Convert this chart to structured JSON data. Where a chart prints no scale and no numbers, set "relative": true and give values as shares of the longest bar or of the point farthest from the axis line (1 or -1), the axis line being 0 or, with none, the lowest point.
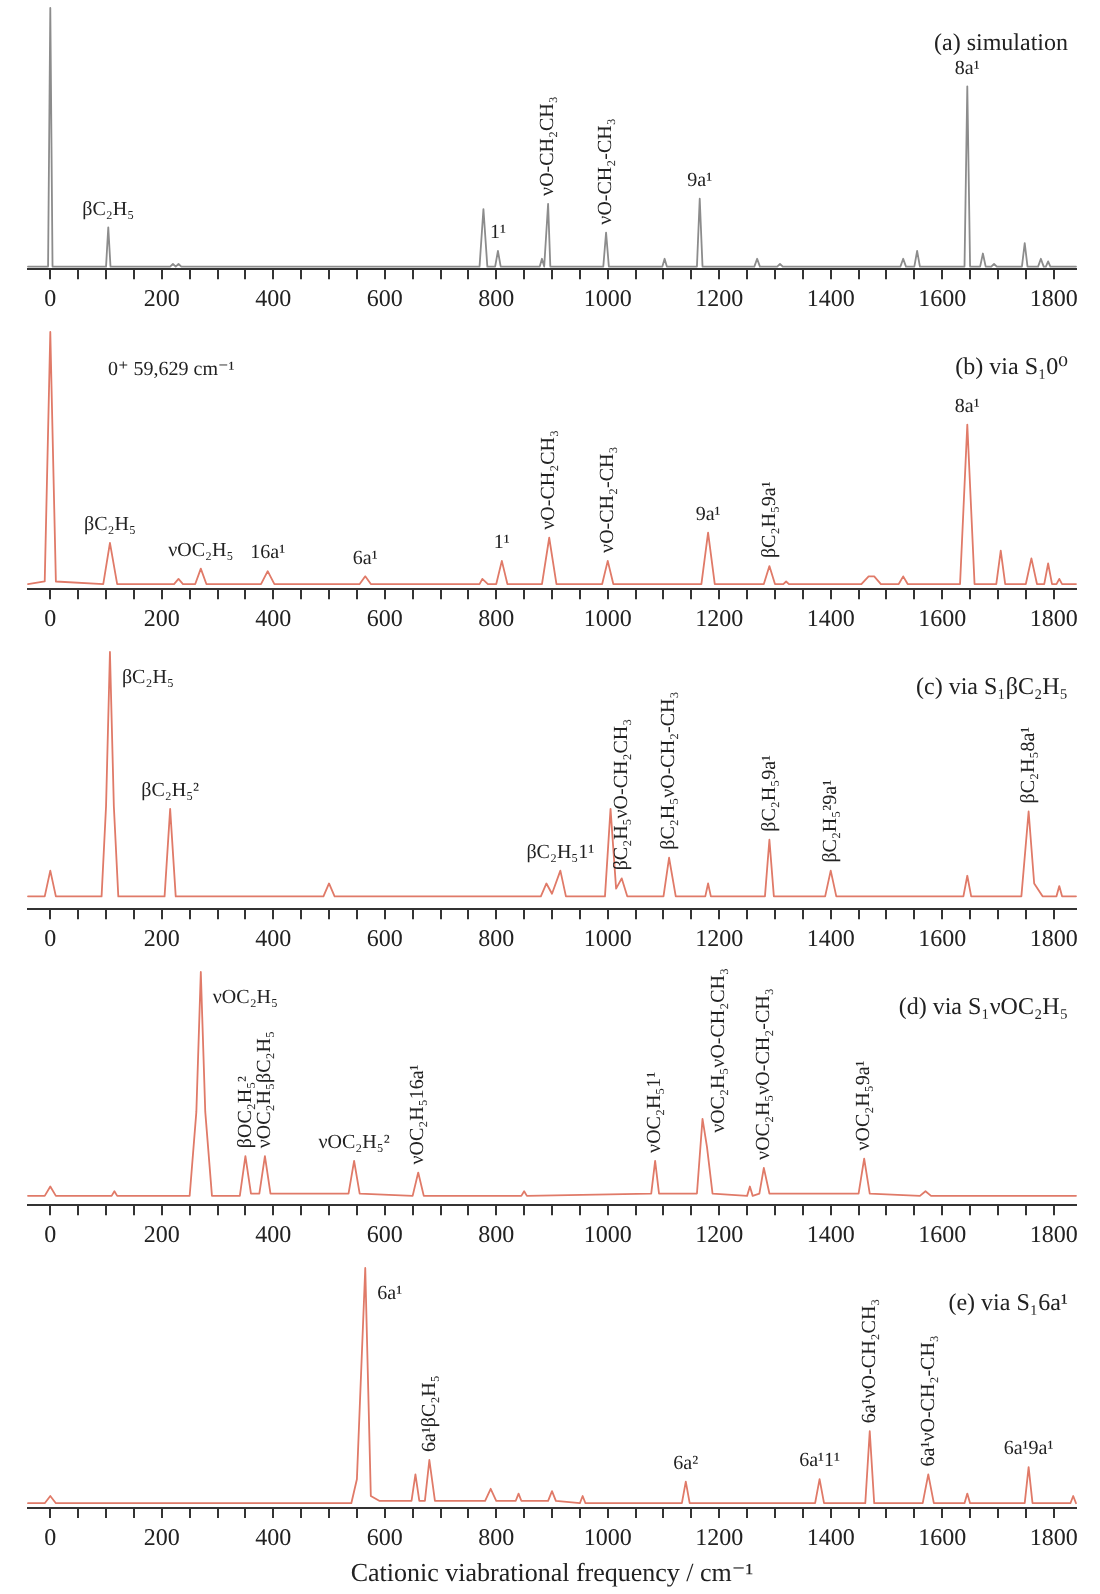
{
  "chart_data": [
    {
      "type": "line",
      "title": "(a) simulation",
      "relative": true,
      "xlim": [
        -40,
        1840
      ],
      "xticks": [
        0,
        {
          "value": 50,
          "label": null
        },
        {
          "value": 100,
          "label": null
        },
        {
          "value": 150,
          "label": null
        },
        200,
        {
          "value": 250,
          "label": null
        },
        {
          "value": 300,
          "label": null
        },
        {
          "value": 350,
          "label": null
        },
        400,
        {
          "value": 450,
          "label": null
        },
        {
          "value": 500,
          "label": null
        },
        {
          "value": 550,
          "label": null
        },
        600,
        {
          "value": 650,
          "label": null
        },
        {
          "value": 700,
          "label": null
        },
        {
          "value": 750,
          "label": null
        },
        800,
        {
          "value": 850,
          "label": null
        },
        {
          "value": 900,
          "label": null
        },
        {
          "value": 950,
          "label": null
        },
        1000,
        {
          "value": 1050,
          "label": null
        },
        {
          "value": 1100,
          "label": null
        },
        {
          "value": 1150,
          "label": null
        },
        1200,
        {
          "value": 1250,
          "label": null
        },
        {
          "value": 1300,
          "label": null
        },
        {
          "value": 1350,
          "label": null
        },
        1400,
        {
          "value": 1450,
          "label": null
        },
        {
          "value": 1500,
          "label": null
        },
        {
          "value": 1550,
          "label": null
        },
        1600,
        {
          "value": 1650,
          "label": null
        },
        {
          "value": 1700,
          "label": null
        },
        {
          "value": 1750,
          "label": null
        },
        1800
      ],
      "series": [
        {
          "color": "#8c8c8c",
          "x": [
            -40,
            -4,
            0,
            4,
            100,
            104,
            108,
            215,
            220,
            225,
            230,
            235,
            770,
            777,
            784,
            798,
            803,
            808,
            878,
            882,
            886,
            889,
            893,
            897,
            992,
            997,
            1002,
            1098,
            1102,
            1106,
            1160,
            1165,
            1170,
            1263,
            1268,
            1273,
            1304,
            1309,
            1314,
            1525,
            1530,
            1535,
            1550,
            1555,
            1560,
            1640,
            1645,
            1650,
            1668,
            1673,
            1678,
            1688,
            1693,
            1698,
            1743,
            1748,
            1753,
            1772,
            1777,
            1782,
            1786,
            1790,
            1794,
            1840
          ],
          "values": [
            0.01,
            0.01,
            1,
            0.01,
            0.01,
            0.16,
            0.01,
            0.01,
            0.02,
            0.01,
            0.02,
            0.01,
            0.01,
            0.23,
            0.01,
            0.01,
            0.07,
            0.01,
            0.01,
            0.04,
            0.01,
            0.01,
            0.25,
            0.01,
            0.01,
            0.14,
            0.01,
            0.01,
            0.04,
            0.01,
            0.01,
            0.27,
            0.01,
            0.01,
            0.04,
            0.01,
            0.01,
            0.02,
            0.01,
            0.01,
            0.04,
            0.01,
            0.01,
            0.07,
            0.01,
            0.01,
            0.7,
            0.01,
            0.01,
            0.06,
            0.01,
            0.01,
            0.02,
            0.01,
            0.01,
            0.1,
            0.01,
            0.01,
            0.04,
            0.01,
            0.01,
            0.03,
            0.01,
            0.01
          ]
        }
      ],
      "annotations": [
        {
          "text": "βC₂H₅",
          "x": 104,
          "y": 0.16
        },
        {
          "text": "1¹",
          "x": 803,
          "y": 0.07
        },
        {
          "text": "νO-CH₂CH₃",
          "x": 893,
          "y": 0.25
        },
        {
          "text": "νO-CH₂-CH₃",
          "x": 997,
          "y": 0.14
        },
        {
          "text": "9a¹",
          "x": 1165,
          "y": 0.27
        },
        {
          "text": "8a¹",
          "x": 1645,
          "y": 0.7
        }
      ]
    },
    {
      "type": "line",
      "title": "(b) via S₁0⁰",
      "relative": true,
      "xlim": [
        -40,
        1840
      ],
      "xticks": [
        0,
        {
          "value": 50,
          "label": null
        },
        {
          "value": 100,
          "label": null
        },
        {
          "value": 150,
          "label": null
        },
        200,
        {
          "value": 250,
          "label": null
        },
        {
          "value": 300,
          "label": null
        },
        {
          "value": 350,
          "label": null
        },
        400,
        {
          "value": 450,
          "label": null
        },
        {
          "value": 500,
          "label": null
        },
        {
          "value": 550,
          "label": null
        },
        600,
        {
          "value": 650,
          "label": null
        },
        {
          "value": 700,
          "label": null
        },
        {
          "value": 750,
          "label": null
        },
        800,
        {
          "value": 850,
          "label": null
        },
        {
          "value": 900,
          "label": null
        },
        {
          "value": 950,
          "label": null
        },
        1000,
        {
          "value": 1050,
          "label": null
        },
        {
          "value": 1100,
          "label": null
        },
        {
          "value": 1150,
          "label": null
        },
        1200,
        {
          "value": 1250,
          "label": null
        },
        {
          "value": 1300,
          "label": null
        },
        {
          "value": 1350,
          "label": null
        },
        1400,
        {
          "value": 1450,
          "label": null
        },
        {
          "value": 1500,
          "label": null
        },
        {
          "value": 1550,
          "label": null
        },
        1600,
        {
          "value": 1650,
          "label": null
        },
        {
          "value": 1700,
          "label": null
        },
        {
          "value": 1750,
          "label": null
        },
        1800
      ],
      "series": [
        {
          "color": "#e07a68",
          "x": [
            -40,
            -10,
            0,
            10,
            95,
            107,
            120,
            222,
            230,
            238,
            260,
            270,
            280,
            378,
            390,
            402,
            555,
            565,
            575,
            770,
            775,
            785,
            800,
            810,
            820,
            882,
            895,
            908,
            990,
            1000,
            1010,
            1168,
            1180,
            1192,
            1280,
            1290,
            1300,
            1315,
            1320,
            1325,
            1455,
            1468,
            1478,
            1490,
            1522,
            1530,
            1538,
            1632,
            1645,
            1658,
            1697,
            1705,
            1713,
            1750,
            1760,
            1770,
            1783,
            1790,
            1797,
            1805,
            1810,
            1815,
            1840
          ],
          "values": [
            0.02,
            0.03,
            1,
            0.03,
            0.02,
            0.18,
            0.02,
            0.02,
            0.04,
            0.02,
            0.02,
            0.08,
            0.02,
            0.02,
            0.07,
            0.02,
            0.02,
            0.05,
            0.02,
            0.02,
            0.04,
            0.02,
            0.02,
            0.11,
            0.02,
            0.02,
            0.2,
            0.02,
            0.02,
            0.11,
            0.02,
            0.02,
            0.22,
            0.02,
            0.02,
            0.09,
            0.02,
            0.02,
            0.03,
            0.02,
            0.02,
            0.05,
            0.05,
            0.02,
            0.02,
            0.05,
            0.02,
            0.02,
            0.64,
            0.02,
            0.02,
            0.15,
            0.02,
            0.02,
            0.12,
            0.02,
            0.02,
            0.1,
            0.02,
            0.02,
            0.04,
            0.02,
            0.02
          ]
        }
      ],
      "annotations": [
        "0⁺ 59,629 cm⁻¹",
        {
          "text": "βC₂H₅",
          "x": 107,
          "y": 0.18
        },
        {
          "text": "νOC₂H₅",
          "x": 270,
          "y": 0.08
        },
        {
          "text": "16a¹",
          "x": 390,
          "y": 0.07
        },
        {
          "text": "6a¹",
          "x": 565,
          "y": 0.05
        },
        {
          "text": "1¹",
          "x": 810,
          "y": 0.11
        },
        {
          "text": "νO-CH₂CH₃",
          "x": 895,
          "y": 0.2
        },
        {
          "text": "νO-CH₂-CH₃",
          "x": 1000,
          "y": 0.11
        },
        {
          "text": "9a¹",
          "x": 1180,
          "y": 0.22
        },
        {
          "text": "βC₂H₅9a¹",
          "x": 1290,
          "y": 0.09
        },
        {
          "text": "8a¹",
          "x": 1645,
          "y": 0.64
        }
      ]
    },
    {
      "type": "line",
      "title": "(c) via S₁βC₂H₅",
      "relative": true,
      "xlim": [
        -40,
        1840
      ],
      "xticks": [
        0,
        {
          "value": 50,
          "label": null
        },
        {
          "value": 100,
          "label": null
        },
        {
          "value": 150,
          "label": null
        },
        200,
        {
          "value": 250,
          "label": null
        },
        {
          "value": 300,
          "label": null
        },
        {
          "value": 350,
          "label": null
        },
        400,
        {
          "value": 450,
          "label": null
        },
        {
          "value": 500,
          "label": null
        },
        {
          "value": 550,
          "label": null
        },
        600,
        {
          "value": 650,
          "label": null
        },
        {
          "value": 700,
          "label": null
        },
        {
          "value": 750,
          "label": null
        },
        800,
        {
          "value": 850,
          "label": null
        },
        {
          "value": 900,
          "label": null
        },
        {
          "value": 950,
          "label": null
        },
        1000,
        {
          "value": 1050,
          "label": null
        },
        {
          "value": 1100,
          "label": null
        },
        {
          "value": 1150,
          "label": null
        },
        1200,
        {
          "value": 1250,
          "label": null
        },
        {
          "value": 1300,
          "label": null
        },
        {
          "value": 1350,
          "label": null
        },
        1400,
        {
          "value": 1450,
          "label": null
        },
        {
          "value": 1500,
          "label": null
        },
        {
          "value": 1550,
          "label": null
        },
        1600,
        {
          "value": 1650,
          "label": null
        },
        {
          "value": 1700,
          "label": null
        },
        {
          "value": 1750,
          "label": null
        },
        1800
      ],
      "series": [
        {
          "color": "#e07a68",
          "x": [
            -40,
            -10,
            0,
            10,
            92,
            100,
            107,
            114,
            122,
            205,
            215,
            225,
            490,
            500,
            510,
            880,
            890,
            900,
            915,
            925,
            995,
            1005,
            1015,
            1025,
            1035,
            1100,
            1110,
            1122,
            1175,
            1180,
            1185,
            1282,
            1290,
            1298,
            1390,
            1400,
            1410,
            1638,
            1645,
            1652,
            1742,
            1755,
            1765,
            1780,
            1805,
            1810,
            1815,
            1840
          ],
          "values": [
            0.05,
            0.05,
            0.15,
            0.05,
            0.05,
            0.4,
            1,
            0.4,
            0.05,
            0.05,
            0.39,
            0.05,
            0.05,
            0.1,
            0.05,
            0.05,
            0.1,
            0.06,
            0.15,
            0.05,
            0.05,
            0.39,
            0.08,
            0.12,
            0.05,
            0.05,
            0.2,
            0.05,
            0.05,
            0.1,
            0.05,
            0.05,
            0.27,
            0.05,
            0.05,
            0.15,
            0.05,
            0.05,
            0.13,
            0.05,
            0.05,
            0.38,
            0.1,
            0.05,
            0.05,
            0.09,
            0.05,
            0.05
          ]
        }
      ],
      "annotations": [
        {
          "text": "βC₂H₅",
          "x": 107,
          "y": 1
        },
        {
          "text": "βC₂H₅²",
          "x": 215,
          "y": 0.39
        },
        {
          "text": "βC₂H₅1¹",
          "x": 915,
          "y": 0.15
        },
        {
          "text": "βC₂H₅νO-CH₂CH₃",
          "x": 1025,
          "y": 0.12
        },
        {
          "text": "βC₂H₅νO-CH₂-CH₃",
          "x": 1110,
          "y": 0.2
        },
        {
          "text": "βC₂H₅9a¹",
          "x": 1290,
          "y": 0.27
        },
        {
          "text": "βC₂H₅²9a¹",
          "x": 1400,
          "y": 0.15
        },
        {
          "text": "βC₂H₅8a¹",
          "x": 1755,
          "y": 0.38
        }
      ]
    },
    {
      "type": "line",
      "title": "(d) via S₁νOC₂H₅",
      "relative": true,
      "xlim": [
        -40,
        1840
      ],
      "xticks": [
        0,
        {
          "value": 50,
          "label": null
        },
        {
          "value": 100,
          "label": null
        },
        {
          "value": 150,
          "label": null
        },
        200,
        {
          "value": 250,
          "label": null
        },
        {
          "value": 300,
          "label": null
        },
        {
          "value": 350,
          "label": null
        },
        400,
        {
          "value": 450,
          "label": null
        },
        {
          "value": 500,
          "label": null
        },
        {
          "value": 550,
          "label": null
        },
        600,
        {
          "value": 650,
          "label": null
        },
        {
          "value": 700,
          "label": null
        },
        {
          "value": 750,
          "label": null
        },
        800,
        {
          "value": 850,
          "label": null
        },
        {
          "value": 900,
          "label": null
        },
        {
          "value": 950,
          "label": null
        },
        1000,
        {
          "value": 1050,
          "label": null
        },
        {
          "value": 1100,
          "label": null
        },
        {
          "value": 1150,
          "label": null
        },
        1200,
        {
          "value": 1250,
          "label": null
        },
        {
          "value": 1300,
          "label": null
        },
        {
          "value": 1350,
          "label": null
        },
        1400,
        {
          "value": 1450,
          "label": null
        },
        {
          "value": 1500,
          "label": null
        },
        {
          "value": 1550,
          "label": null
        },
        1600,
        {
          "value": 1650,
          "label": null
        },
        {
          "value": 1700,
          "label": null
        },
        {
          "value": 1750,
          "label": null
        },
        1800
      ],
      "series": [
        {
          "color": "#e07a68",
          "x": [
            -40,
            -10,
            0,
            10,
            110,
            115,
            120,
            250,
            262,
            270,
            278,
            290,
            340,
            350,
            360,
            375,
            385,
            395,
            535,
            545,
            555,
            650,
            660,
            670,
            845,
            850,
            855,
            1078,
            1085,
            1092,
            1160,
            1170,
            1178,
            1188,
            1250,
            1255,
            1260,
            1272,
            1280,
            1290,
            1450,
            1460,
            1470,
            1560,
            1570,
            1580,
            1840
          ],
          "values": [
            0.04,
            0.04,
            0.08,
            0.04,
            0.04,
            0.06,
            0.04,
            0.04,
            0.4,
            1,
            0.4,
            0.04,
            0.04,
            0.21,
            0.05,
            0.05,
            0.21,
            0.05,
            0.05,
            0.19,
            0.05,
            0.04,
            0.14,
            0.04,
            0.04,
            0.06,
            0.04,
            0.05,
            0.19,
            0.05,
            0.05,
            0.37,
            0.25,
            0.05,
            0.04,
            0.08,
            0.04,
            0.05,
            0.16,
            0.05,
            0.05,
            0.2,
            0.05,
            0.04,
            0.06,
            0.04,
            0.04
          ]
        }
      ],
      "annotations": [
        {
          "text": "νOC₂H₅",
          "x": 270,
          "y": 1
        },
        {
          "text": "βOC₂H₅²",
          "x": 350,
          "y": 0.21
        },
        {
          "text": "νOC₂H₅βC₂H₅",
          "x": 385,
          "y": 0.21
        },
        {
          "text": "νOC₂H₅²",
          "x": 545,
          "y": 0.19
        },
        {
          "text": "νOC₂H₅16a¹",
          "x": 660,
          "y": 0.14
        },
        {
          "text": "νOC₂H₅1¹",
          "x": 1085,
          "y": 0.19
        },
        {
          "text": "νOC₂H₅νO-CH₂CH₃",
          "x": 1170,
          "y": 0.37
        },
        {
          "text": "νOC₂H₅νO-CH₂-CH₃",
          "x": 1280,
          "y": 0.16
        },
        {
          "text": "νOC₂H₅9a¹",
          "x": 1460,
          "y": 0.2
        }
      ]
    },
    {
      "type": "line",
      "title": "(e) via S₁6a¹",
      "xlabel": "Cationic viabrational frequency / cm⁻¹",
      "relative": true,
      "xlim": [
        -40,
        1840
      ],
      "xticks": [
        0,
        {
          "value": 50,
          "label": null
        },
        {
          "value": 100,
          "label": null
        },
        {
          "value": 150,
          "label": null
        },
        200,
        {
          "value": 250,
          "label": null
        },
        {
          "value": 300,
          "label": null
        },
        {
          "value": 350,
          "label": null
        },
        400,
        {
          "value": 450,
          "label": null
        },
        {
          "value": 500,
          "label": null
        },
        {
          "value": 550,
          "label": null
        },
        600,
        {
          "value": 650,
          "label": null
        },
        {
          "value": 700,
          "label": null
        },
        {
          "value": 750,
          "label": null
        },
        800,
        {
          "value": 850,
          "label": null
        },
        {
          "value": 900,
          "label": null
        },
        {
          "value": 950,
          "label": null
        },
        1000,
        {
          "value": 1050,
          "label": null
        },
        {
          "value": 1100,
          "label": null
        },
        {
          "value": 1150,
          "label": null
        },
        1200,
        {
          "value": 1250,
          "label": null
        },
        {
          "value": 1300,
          "label": null
        },
        {
          "value": 1350,
          "label": null
        },
        1400,
        {
          "value": 1450,
          "label": null
        },
        {
          "value": 1500,
          "label": null
        },
        {
          "value": 1550,
          "label": null
        },
        1600,
        {
          "value": 1650,
          "label": null
        },
        {
          "value": 1700,
          "label": null
        },
        {
          "value": 1750,
          "label": null
        },
        1800
      ],
      "series": [
        {
          "color": "#e07a68",
          "x": [
            -40,
            -10,
            0,
            10,
            540,
            550,
            565,
            575,
            590,
            648,
            655,
            662,
            672,
            680,
            690,
            780,
            790,
            800,
            835,
            840,
            845,
            893,
            900,
            907,
            950,
            955,
            960,
            1133,
            1140,
            1147,
            1372,
            1380,
            1388,
            1462,
            1470,
            1478,
            1565,
            1575,
            1585,
            1640,
            1645,
            1650,
            1748,
            1755,
            1762,
            1830,
            1835,
            1840
          ],
          "values": [
            0.02,
            0.02,
            0.05,
            0.02,
            0.02,
            0.12,
            1,
            0.05,
            0.03,
            0.03,
            0.14,
            0.03,
            0.03,
            0.2,
            0.03,
            0.03,
            0.08,
            0.03,
            0.03,
            0.06,
            0.03,
            0.03,
            0.07,
            0.03,
            0.02,
            0.05,
            0.02,
            0.02,
            0.11,
            0.02,
            0.02,
            0.12,
            0.02,
            0.02,
            0.32,
            0.02,
            0.02,
            0.14,
            0.02,
            0.02,
            0.06,
            0.02,
            0.02,
            0.17,
            0.02,
            0.02,
            0.05,
            0.02
          ]
        }
      ],
      "annotations": [
        {
          "text": "6a¹",
          "x": 565,
          "y": 1
        },
        {
          "text": "6a¹βC₂H₅",
          "x": 680,
          "y": 0.2
        },
        {
          "text": "6a²",
          "x": 1140,
          "y": 0.11
        },
        {
          "text": "6a¹1¹",
          "x": 1380,
          "y": 0.12
        },
        {
          "text": "6a¹νO-CH₂CH₃",
          "x": 1470,
          "y": 0.32
        },
        {
          "text": "6a¹νO-CH₂-CH₃",
          "x": 1575,
          "y": 0.14
        },
        {
          "text": "6a¹9a¹",
          "x": 1755,
          "y": 0.17
        }
      ]
    }
  ]
}
